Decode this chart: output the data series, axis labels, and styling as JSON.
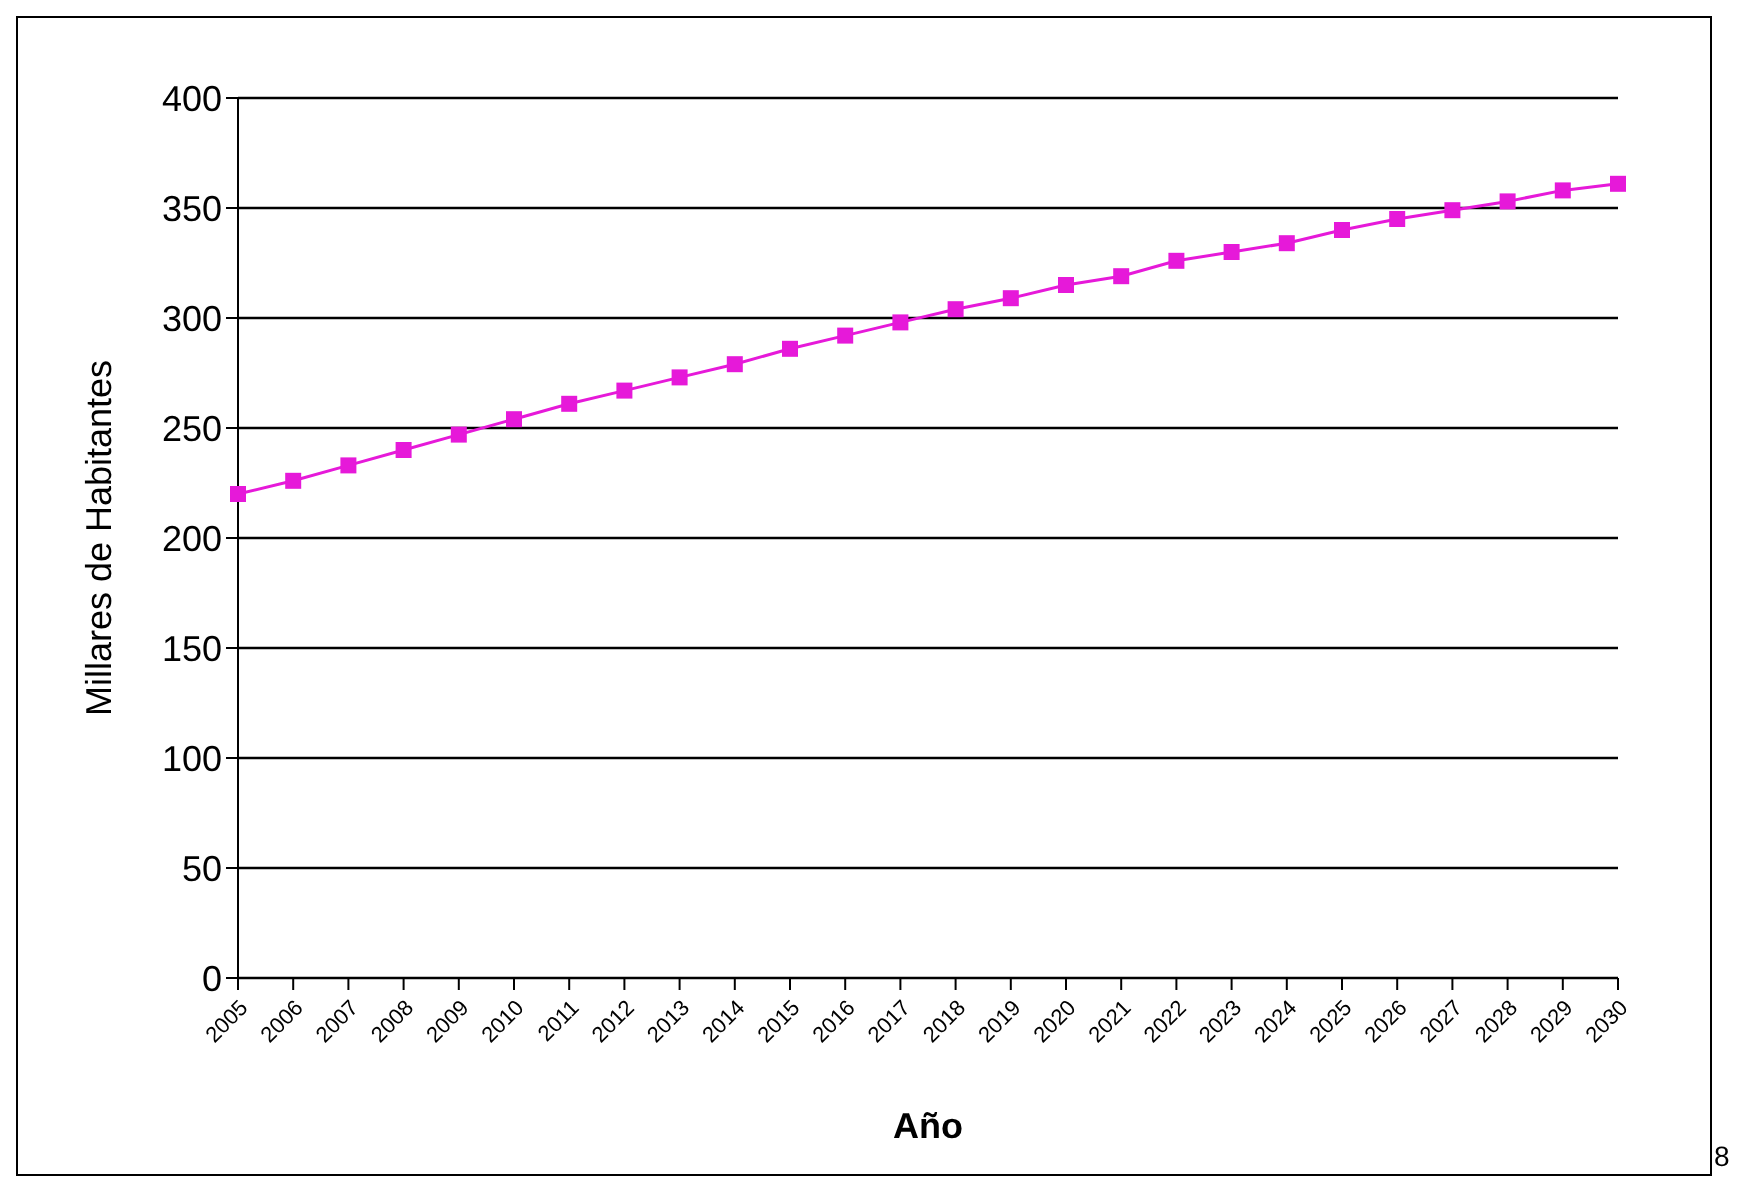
{
  "chart_data": {
    "type": "line",
    "xlabel": "Año",
    "ylabel": "Millares de Habitantes",
    "categories": [
      "2005",
      "2006",
      "2007",
      "2008",
      "2009",
      "2010",
      "2011",
      "2012",
      "2013",
      "2014",
      "2015",
      "2016",
      "2017",
      "2018",
      "2019",
      "2020",
      "2021",
      "2022",
      "2023",
      "2024",
      "2025",
      "2026",
      "2027",
      "2028",
      "2029",
      "2030"
    ],
    "series": [
      {
        "color": "#e619d9",
        "values": [
          220,
          226,
          233,
          240,
          247,
          254,
          261,
          267,
          273,
          279,
          286,
          292,
          298,
          304,
          309,
          315,
          319,
          326,
          330,
          334,
          340,
          345,
          349,
          353,
          358,
          361
        ]
      }
    ],
    "ylim": [
      0,
      400
    ],
    "yticks": [
      0,
      50,
      100,
      150,
      200,
      250,
      300,
      350,
      400
    ],
    "grid": "y",
    "marker": "square",
    "legend": false,
    "annotations": [
      "8"
    ]
  }
}
